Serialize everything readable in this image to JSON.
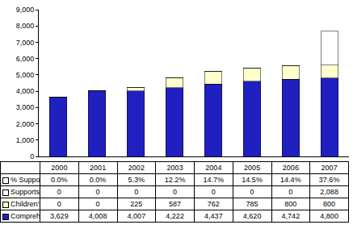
{
  "chart_data": {
    "type": "bar",
    "stacked": true,
    "grid": false,
    "tick_labels": "y",
    "categories": [
      "2000",
      "2001",
      "2002",
      "2003",
      "2004",
      "2005",
      "2006",
      "2007"
    ],
    "series": [
      {
        "name": "Comprehensive",
        "color": "#2020c0",
        "values": [
          3629,
          4008,
          4007,
          4222,
          4437,
          4620,
          4742,
          4800
        ],
        "value_labels": [
          "3,629",
          "4,008",
          "4,007",
          "4,222",
          "4,437",
          "4,620",
          "4,742",
          "4,800"
        ]
      },
      {
        "name": "Children's Choice",
        "color": "#ffffcc",
        "values": [
          0,
          0,
          225,
          587,
          762,
          785,
          800,
          800
        ],
        "value_labels": [
          "0",
          "0",
          "225",
          "587",
          "762",
          "785",
          "800",
          "800"
        ]
      },
      {
        "name": "Supports Waiver",
        "color": "#ffffff",
        "values": [
          0,
          0,
          0,
          0,
          0,
          0,
          0,
          2088
        ],
        "value_labels": [
          "0",
          "0",
          "0",
          "0",
          "0",
          "0",
          "0",
          "2,088"
        ]
      },
      {
        "name": "% Supports",
        "type": "table",
        "values": [
          0.0,
          0.0,
          5.3,
          12.2,
          14.7,
          14.5,
          14.4,
          37.6
        ],
        "value_labels": [
          "0.0%",
          "0.0%",
          "5.3%",
          "12.2%",
          "14.7%",
          "14.5%",
          "14.4%",
          "37.6%"
        ]
      }
    ],
    "ylim": [
      0,
      9000
    ],
    "yticks": [
      0,
      {
        "value": 1000,
        "label": "1,000"
      },
      {
        "value": 2000,
        "label": "2,000"
      },
      {
        "value": 3000,
        "label": "3,000"
      },
      {
        "value": 4000,
        "label": "4,000"
      },
      {
        "value": 5000,
        "label": "5,000"
      },
      {
        "value": 6000,
        "label": "6,000"
      },
      {
        "value": 7000,
        "label": "7,000"
      },
      {
        "value": 8000,
        "label": "8,000"
      },
      {
        "value": 9000,
        "label": "9,000"
      }
    ]
  }
}
